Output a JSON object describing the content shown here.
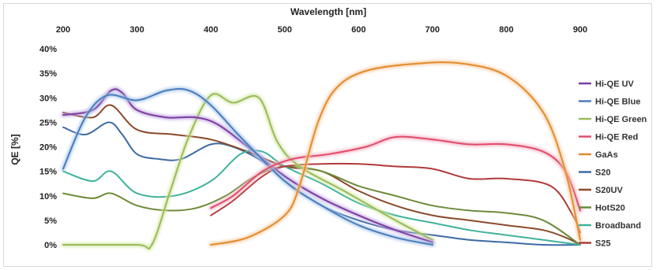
{
  "chart_data": {
    "type": "line",
    "title": "",
    "xlabel": "Wavelength [nm]",
    "ylabel": "QE [%]",
    "xlim": [
      200,
      900
    ],
    "ylim": [
      0,
      40
    ],
    "x_ticks": [
      200,
      300,
      400,
      500,
      600,
      700,
      800,
      900
    ],
    "y_ticks": [
      0,
      5,
      10,
      15,
      20,
      25,
      30,
      35,
      40
    ],
    "y_tick_labels": [
      "0%",
      "5%",
      "10%",
      "15%",
      "20%",
      "25%",
      "30%",
      "35%",
      "40%"
    ],
    "x_axis_position": "top",
    "grid": false,
    "legend_position": "right",
    "series": [
      {
        "name": "Hi-QE UV",
        "color": "#7b3fa0",
        "glow": "#c3a6e0",
        "points": [
          [
            200,
            26.5
          ],
          [
            240,
            27.5
          ],
          [
            265,
            31.5
          ],
          [
            280,
            31
          ],
          [
            300,
            27.5
          ],
          [
            340,
            26
          ],
          [
            380,
            26
          ],
          [
            410,
            24.5
          ],
          [
            450,
            20
          ],
          [
            500,
            14
          ],
          [
            550,
            9.5
          ],
          [
            600,
            6
          ],
          [
            650,
            3
          ],
          [
            700,
            0.5
          ]
        ]
      },
      {
        "name": "Hi-QE Blue",
        "color": "#4a7ebb",
        "glow": "#a9c6ea",
        "points": [
          [
            200,
            15.5
          ],
          [
            230,
            26
          ],
          [
            260,
            30.5
          ],
          [
            300,
            29.5
          ],
          [
            340,
            31.5
          ],
          [
            370,
            31.5
          ],
          [
            400,
            28.5
          ],
          [
            440,
            22
          ],
          [
            500,
            13
          ],
          [
            550,
            8
          ],
          [
            600,
            4
          ],
          [
            650,
            1.5
          ],
          [
            700,
            0
          ]
        ]
      },
      {
        "name": "Hi-QE Green",
        "color": "#9bbb59",
        "glow": "#d3e6a8",
        "points": [
          [
            200,
            0
          ],
          [
            300,
            0
          ],
          [
            320,
            0
          ],
          [
            345,
            11
          ],
          [
            370,
            22
          ],
          [
            400,
            30.5
          ],
          [
            430,
            29
          ],
          [
            465,
            30
          ],
          [
            490,
            21
          ],
          [
            520,
            16
          ],
          [
            580,
            11
          ],
          [
            650,
            5
          ],
          [
            700,
            1
          ]
        ]
      },
      {
        "name": "Hi-QE Red",
        "color": "#e24d6a",
        "glow": "#f2b0c2",
        "points": [
          [
            400,
            7.5
          ],
          [
            430,
            10
          ],
          [
            470,
            15
          ],
          [
            510,
            17.5
          ],
          [
            560,
            18.5
          ],
          [
            610,
            20
          ],
          [
            650,
            22
          ],
          [
            700,
            21.5
          ],
          [
            750,
            20.5
          ],
          [
            800,
            20.5
          ],
          [
            850,
            19
          ],
          [
            880,
            15
          ],
          [
            900,
            7
          ]
        ]
      },
      {
        "name": "GaAs",
        "color": "#e48c2e",
        "glow": "#f4caa0",
        "points": [
          [
            400,
            0
          ],
          [
            450,
            1.5
          ],
          [
            500,
            6
          ],
          [
            520,
            12
          ],
          [
            545,
            25
          ],
          [
            570,
            32
          ],
          [
            610,
            35.5
          ],
          [
            680,
            37
          ],
          [
            740,
            37
          ],
          [
            800,
            34.5
          ],
          [
            850,
            27
          ],
          [
            880,
            15
          ],
          [
            900,
            1
          ]
        ]
      },
      {
        "name": "S20",
        "color": "#3d6aa3",
        "glow": "",
        "points": [
          [
            200,
            24
          ],
          [
            230,
            22.5
          ],
          [
            262,
            25
          ],
          [
            280,
            22.5
          ],
          [
            300,
            18.5
          ],
          [
            330,
            17.5
          ],
          [
            360,
            17.5
          ],
          [
            400,
            20.5
          ],
          [
            430,
            20
          ],
          [
            470,
            17
          ],
          [
            500,
            13
          ],
          [
            550,
            8
          ],
          [
            600,
            5
          ],
          [
            650,
            3
          ],
          [
            700,
            2
          ],
          [
            750,
            1
          ],
          [
            800,
            0.5
          ],
          [
            850,
            0
          ],
          [
            900,
            0
          ]
        ]
      },
      {
        "name": "S20UV",
        "color": "#8b4a2b",
        "glow": "",
        "points": [
          [
            200,
            27
          ],
          [
            240,
            26
          ],
          [
            265,
            28.5
          ],
          [
            300,
            23.5
          ],
          [
            350,
            22.5
          ],
          [
            400,
            21.5
          ],
          [
            450,
            19
          ],
          [
            500,
            16
          ],
          [
            550,
            15
          ],
          [
            600,
            11
          ],
          [
            650,
            8
          ],
          [
            700,
            6
          ],
          [
            750,
            5
          ],
          [
            800,
            4
          ],
          [
            850,
            3
          ],
          [
            880,
            1.5
          ],
          [
            900,
            0
          ]
        ]
      },
      {
        "name": "HotS20",
        "color": "#6d8b3a",
        "glow": "",
        "points": [
          [
            200,
            10.5
          ],
          [
            240,
            9.5
          ],
          [
            265,
            10.5
          ],
          [
            300,
            8
          ],
          [
            340,
            7
          ],
          [
            380,
            7.5
          ],
          [
            420,
            10
          ],
          [
            460,
            14
          ],
          [
            500,
            16
          ],
          [
            550,
            15
          ],
          [
            600,
            12
          ],
          [
            650,
            10
          ],
          [
            700,
            8
          ],
          [
            750,
            7
          ],
          [
            800,
            6.5
          ],
          [
            850,
            5
          ],
          [
            900,
            0
          ]
        ]
      },
      {
        "name": "Broadband",
        "color": "#3fb39a",
        "glow": "",
        "points": [
          [
            200,
            15
          ],
          [
            240,
            13
          ],
          [
            265,
            15
          ],
          [
            300,
            10.5
          ],
          [
            350,
            10
          ],
          [
            400,
            13
          ],
          [
            440,
            18.5
          ],
          [
            470,
            19
          ],
          [
            500,
            16
          ],
          [
            550,
            12.5
          ],
          [
            600,
            8.5
          ],
          [
            650,
            6
          ],
          [
            700,
            4.5
          ],
          [
            750,
            3
          ],
          [
            800,
            2
          ],
          [
            850,
            1
          ],
          [
            900,
            0
          ]
        ]
      },
      {
        "name": "S25",
        "color": "#b03a3a",
        "glow": "",
        "points": [
          [
            400,
            6
          ],
          [
            430,
            9
          ],
          [
            470,
            14
          ],
          [
            500,
            16
          ],
          [
            550,
            16.5
          ],
          [
            600,
            16.5
          ],
          [
            650,
            16
          ],
          [
            700,
            15.5
          ],
          [
            750,
            13.5
          ],
          [
            800,
            13.5
          ],
          [
            860,
            12
          ],
          [
            890,
            6
          ],
          [
            900,
            2.5
          ]
        ]
      }
    ]
  }
}
